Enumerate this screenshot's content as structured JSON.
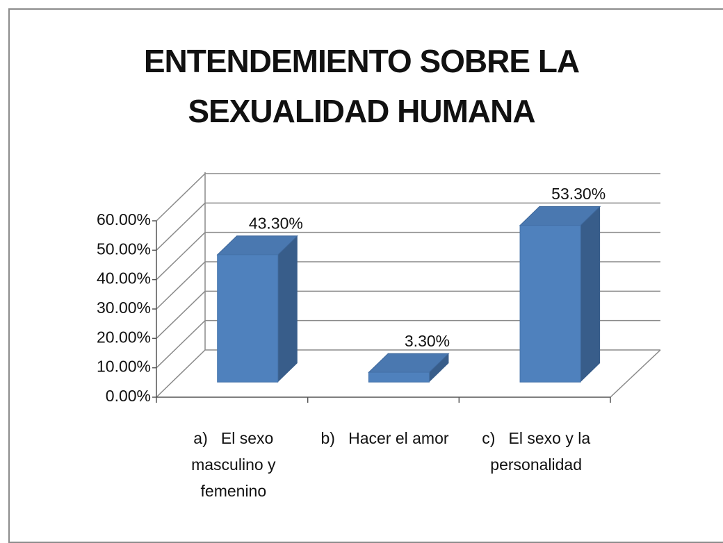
{
  "chart_data": {
    "type": "bar3d",
    "title": "ENTENDEMIENTO SOBRE LA SEXUALIDAD HUMANA",
    "categories": [
      "a)   El sexo masculino y femenino",
      "b)   Hacer el amor",
      "c)   El sexo y la personalidad"
    ],
    "values": [
      43.3,
      3.3,
      53.3
    ],
    "value_labels": [
      "43.30%",
      "3.30%",
      "53.30%"
    ],
    "color": "#4f81bd",
    "ylim": [
      0,
      60
    ],
    "yticks": [
      {
        "value": 0,
        "label": "0.00%"
      },
      {
        "value": 10,
        "label": "10.00%"
      },
      {
        "value": 20,
        "label": "20.00%"
      },
      {
        "value": 30,
        "label": "30.00%"
      },
      {
        "value": 40,
        "label": "40.00%"
      },
      {
        "value": 50,
        "label": "50.00%"
      },
      {
        "value": 60,
        "label": "60.00%"
      }
    ],
    "grid": true
  }
}
